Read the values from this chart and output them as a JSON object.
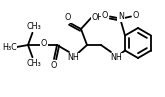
{
  "bg": "#ffffff",
  "lc": "#000000",
  "lw": 1.3,
  "fs": 5.8,
  "dpi": 100,
  "fig_w": 1.65,
  "fig_h": 0.97,
  "xlim": [
    0,
    165
  ],
  "ylim": [
    0,
    97
  ]
}
